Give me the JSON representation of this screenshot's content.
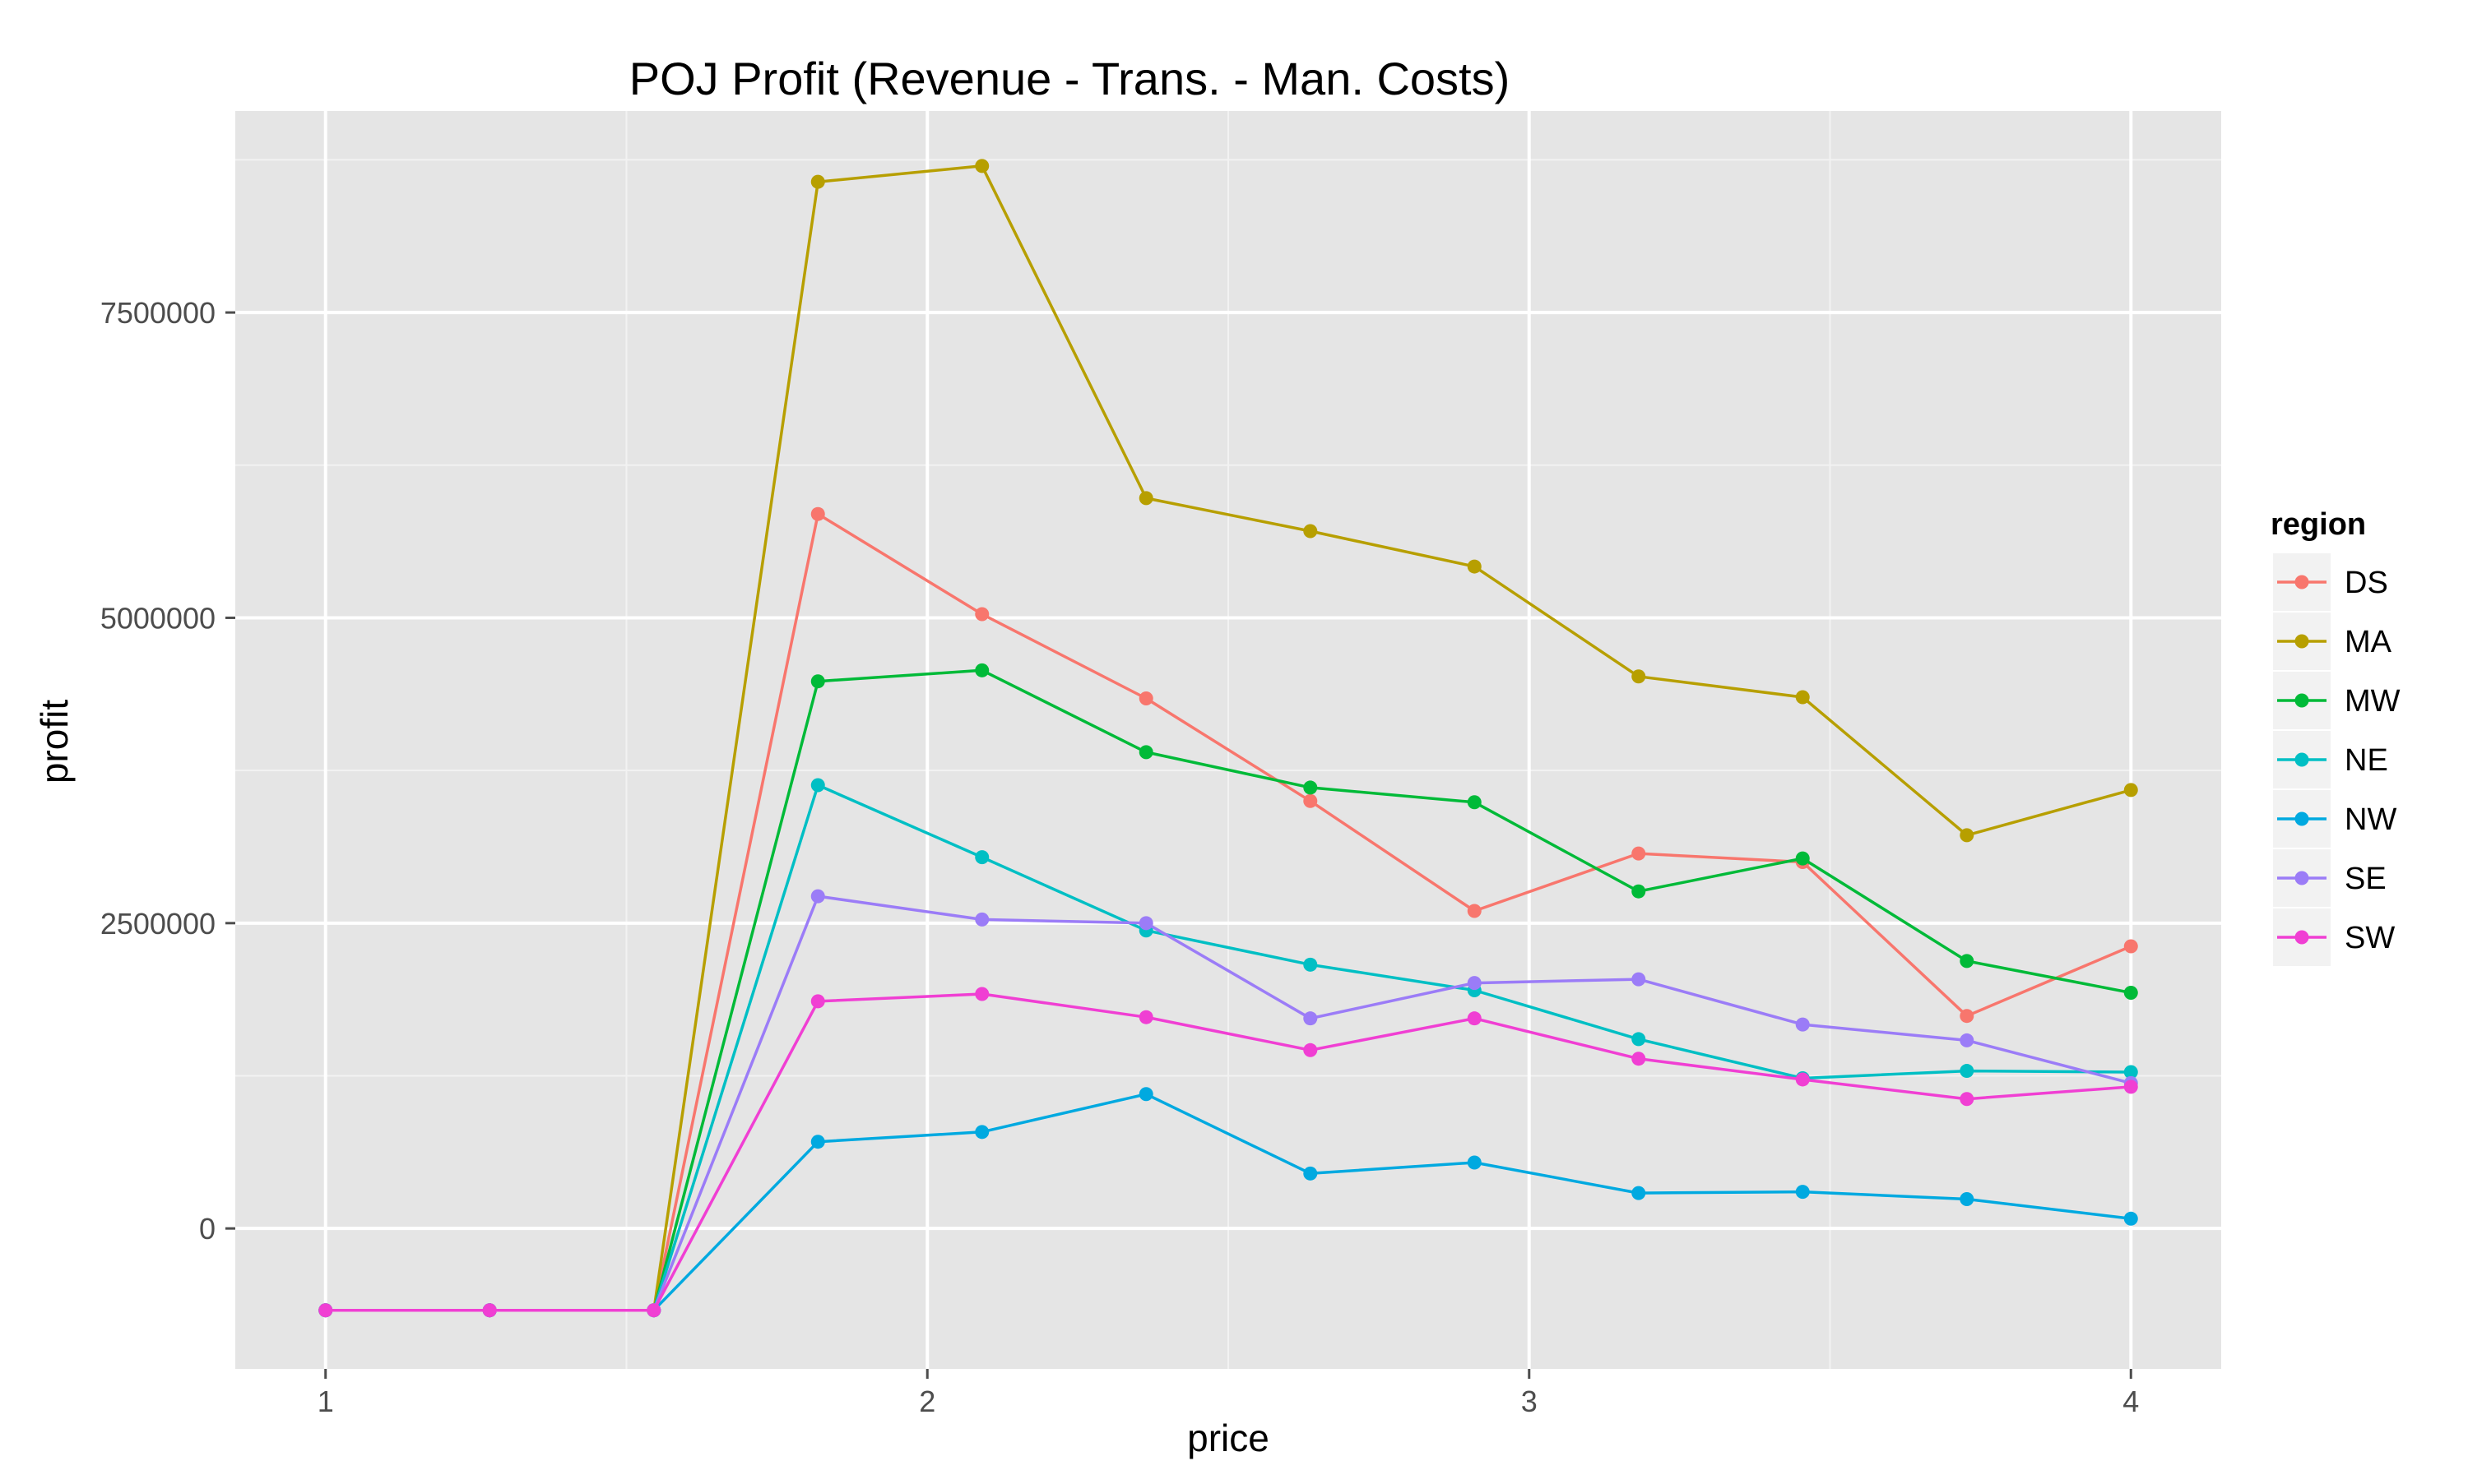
{
  "chart_data": {
    "type": "line",
    "title": "POJ Profit (Revenue - Trans. - Man. Costs)",
    "xlabel": "price",
    "ylabel": "profit",
    "xlim": [
      0.85,
      4.15
    ],
    "ylim": [
      -1150000,
      9150000
    ],
    "x_ticks": [
      1,
      2,
      3,
      4
    ],
    "x_tick_labels": [
      "1",
      "2",
      "3",
      "4"
    ],
    "y_ticks": [
      0,
      2500000,
      5000000,
      7500000
    ],
    "y_tick_labels": [
      "0",
      "2500000",
      "5000000",
      "7500000"
    ],
    "x_minor_ticks": [
      1.5,
      2.5,
      3.5
    ],
    "y_minor_ticks": [
      -1250000,
      1250000,
      3750000,
      6250000,
      8750000
    ],
    "grid": true,
    "legend_title": "region",
    "legend_position": "right",
    "x": [
      1.0,
      1.2727,
      1.5455,
      1.8182,
      2.0909,
      2.3636,
      2.6364,
      2.9091,
      3.1818,
      3.4545,
      3.7273,
      4.0
    ],
    "series": [
      {
        "name": "DS",
        "color": "#F8766D",
        "values": [
          -670000,
          -670000,
          -670000,
          5850000,
          5030000,
          4340000,
          3500000,
          2600000,
          3070000,
          3000000,
          1740000,
          2310000
        ]
      },
      {
        "name": "MA",
        "color": "#B79F00",
        "values": [
          -670000,
          -670000,
          -670000,
          8570000,
          8700000,
          5980000,
          5710000,
          5420000,
          4520000,
          4350000,
          3220000,
          3590000
        ]
      },
      {
        "name": "MW",
        "color": "#00BA38",
        "values": [
          -670000,
          -670000,
          -670000,
          4480000,
          4570000,
          3900000,
          3610000,
          3490000,
          2760000,
          3030000,
          2190000,
          1930000
        ]
      },
      {
        "name": "NE",
        "color": "#00BFC4",
        "values": [
          -670000,
          -670000,
          -670000,
          3630000,
          3040000,
          2440000,
          2160000,
          1950000,
          1550000,
          1230000,
          1290000,
          1280000
        ]
      },
      {
        "name": "NW",
        "color": "#00A9E0",
        "values": [
          -670000,
          -670000,
          -670000,
          710000,
          790000,
          1100000,
          450000,
          540000,
          290000,
          300000,
          240000,
          80000
        ]
      },
      {
        "name": "SE",
        "color": "#9B7CF7",
        "values": [
          -670000,
          -670000,
          -670000,
          2720000,
          2530000,
          2500000,
          1720000,
          2010000,
          2040000,
          1670000,
          1540000,
          1190000
        ]
      },
      {
        "name": "SW",
        "color": "#F03FD3",
        "values": [
          -670000,
          -670000,
          -670000,
          1860000,
          1920000,
          1730000,
          1460000,
          1720000,
          1390000,
          1220000,
          1060000,
          1160000
        ]
      }
    ]
  }
}
